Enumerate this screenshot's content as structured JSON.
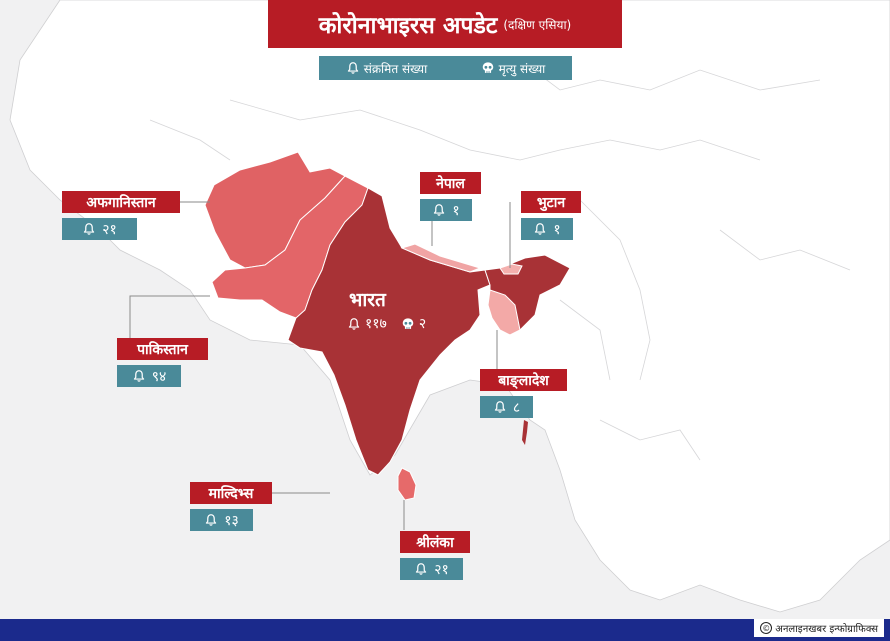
{
  "title": {
    "main": "कोरोनाभाइरस अपडेट",
    "sub": "(दक्षिण एसिया)"
  },
  "legend": {
    "infected_label": "संक्रमित संख्या",
    "deaths_label": "मृत्यु संख्या"
  },
  "countries": {
    "afghanistan": {
      "name": "अफगानिस्तान",
      "infected": "२१"
    },
    "pakistan": {
      "name": "पाकिस्तान",
      "infected": "९४"
    },
    "nepal": {
      "name": "नेपाल",
      "infected": "१"
    },
    "bhutan": {
      "name": "भुटान",
      "infected": "१"
    },
    "india": {
      "name": "भारत",
      "infected": "११७",
      "deaths": "२"
    },
    "bangladesh": {
      "name": "बाङ्लादेश",
      "infected": "८"
    },
    "maldives": {
      "name": "माल्दिभ्स",
      "infected": "१३"
    },
    "srilanka": {
      "name": "श्रीलंका",
      "infected": "२१"
    }
  },
  "credit": {
    "icon": "©",
    "text": "अनलाइनखबर इन्फोग्राफिक्स"
  },
  "colors": {
    "india": "#a83236",
    "afghanistan": "#e06264",
    "pakistan": "#e36568",
    "nepal": "#f0a4a4",
    "bhutan": "#f4b0ae",
    "bangladesh": "#f3a9a7",
    "srilanka": "#e66a6a",
    "label_red": "#b71c25",
    "count_teal": "#4a8a99",
    "footer": "#1b2a8c"
  },
  "icons": {
    "infected": "bell-icon",
    "deaths": "skull-icon"
  }
}
